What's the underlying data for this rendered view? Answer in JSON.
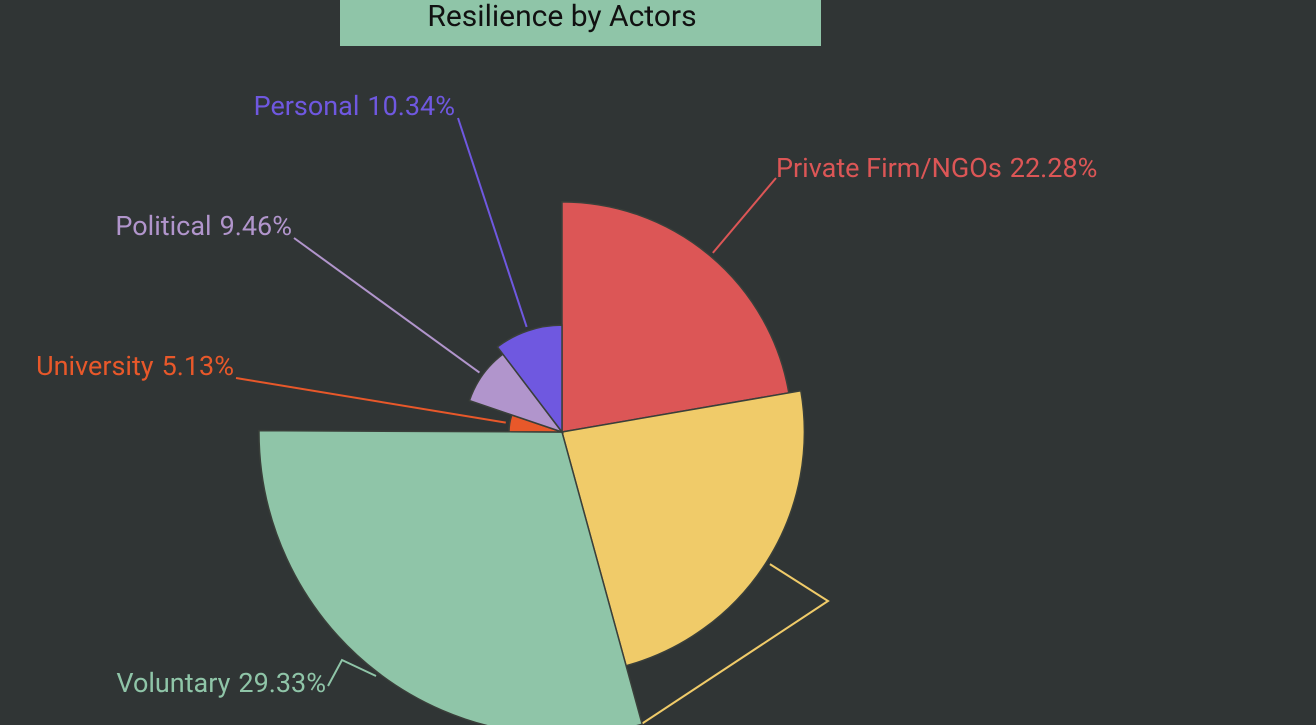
{
  "chart_data": {
    "type": "pie",
    "rose": true,
    "title": "Resilience by Actors",
    "categories": [
      "Private Firm/NGOs",
      null,
      "Voluntary",
      "University",
      "Political",
      "Personal"
    ],
    "values": [
      22.28,
      23.46,
      29.33,
      5.13,
      9.46,
      10.34
    ],
    "value_labels": [
      "22.28%",
      null,
      "29.33%",
      "5.13%",
      "9.46%",
      "10.34%"
    ],
    "colors": [
      "#dc5656",
      "#f0cb69",
      "#8fc5a8",
      "#e8582a",
      "#b195cc",
      "#6f58e0"
    ]
  }
}
